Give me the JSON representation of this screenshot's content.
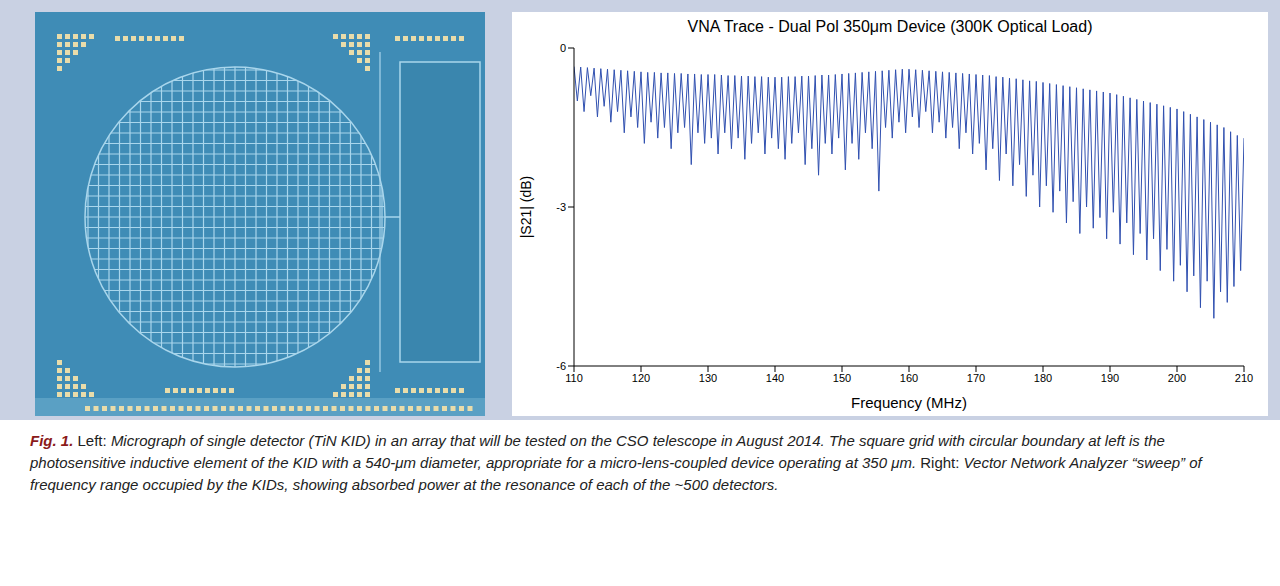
{
  "chart_data": {
    "type": "line",
    "title": "VNA Trace - Dual Pol 350μm Device (300K Optical Load)",
    "x_label": "Frequency (MHz)",
    "y_label": "|S21| (dB)",
    "color": "#3050b0",
    "grid": false,
    "xlim": [
      110,
      210
    ],
    "xticks": [
      110,
      120,
      130,
      140,
      150,
      160,
      170,
      180,
      190,
      200,
      210
    ],
    "ylim": [
      -6,
      0
    ],
    "yticks": [
      -6,
      -3,
      0
    ],
    "x": [
      110,
      110.5,
      111,
      111.5,
      112,
      112.5,
      113,
      113.5,
      114,
      114.5,
      115,
      115.5,
      116,
      116.5,
      117,
      117.5,
      118,
      118.5,
      119,
      119.5,
      120,
      120.5,
      121,
      121.5,
      122,
      122.5,
      123,
      123.5,
      124,
      124.5,
      125,
      125.5,
      126,
      126.5,
      127,
      127.5,
      128,
      128.5,
      129,
      129.5,
      130,
      130.5,
      131,
      131.5,
      132,
      132.5,
      133,
      133.5,
      134,
      134.5,
      135,
      135.5,
      136,
      136.5,
      137,
      137.5,
      138,
      138.5,
      139,
      139.5,
      140,
      140.5,
      141,
      141.5,
      142,
      142.5,
      143,
      143.5,
      144,
      144.5,
      145,
      145.5,
      146,
      146.5,
      147,
      147.5,
      148,
      148.5,
      149,
      149.5,
      150,
      150.5,
      151,
      151.5,
      152,
      152.5,
      153,
      153.5,
      154,
      154.5,
      155,
      155.5,
      156,
      156.5,
      157,
      157.5,
      158,
      158.5,
      159,
      159.5,
      160,
      160.5,
      161,
      161.5,
      162,
      162.5,
      163,
      163.5,
      164,
      164.5,
      165,
      165.5,
      166,
      166.5,
      167,
      167.5,
      168,
      168.5,
      169,
      169.5,
      170,
      170.5,
      171,
      171.5,
      172,
      172.5,
      173,
      173.5,
      174,
      174.5,
      175,
      175.5,
      176,
      176.5,
      177,
      177.5,
      178,
      178.5,
      179,
      179.5,
      180,
      180.5,
      181,
      181.5,
      182,
      182.5,
      183,
      183.5,
      184,
      184.5,
      185,
      185.5,
      186,
      186.5,
      187,
      187.5,
      188,
      188.5,
      189,
      189.5,
      190,
      190.5,
      191,
      191.5,
      192,
      192.5,
      193,
      193.5,
      194,
      194.5,
      195,
      195.5,
      196,
      196.5,
      197,
      197.5,
      198,
      198.5,
      199,
      199.5,
      200,
      200.5,
      201,
      201.5,
      202,
      202.5,
      203,
      203.5,
      204,
      204.5,
      205,
      205.5,
      206,
      206.5,
      207,
      207.5,
      208,
      208.5,
      209,
      209.5,
      210
    ],
    "values": [
      -0.35,
      -1.0,
      -0.36,
      -1.2,
      -0.37,
      -0.9,
      -0.38,
      -1.3,
      -0.39,
      -1.1,
      -0.4,
      -1.4,
      -0.41,
      -1.2,
      -0.42,
      -1.6,
      -0.43,
      -1.3,
      -0.44,
      -1.5,
      -0.45,
      -1.8,
      -0.46,
      -1.4,
      -0.46,
      -1.7,
      -0.47,
      -1.5,
      -0.47,
      -1.9,
      -0.48,
      -1.6,
      -0.48,
      -1.5,
      -0.49,
      -2.2,
      -0.49,
      -1.6,
      -0.5,
      -1.8,
      -0.5,
      -1.7,
      -0.5,
      -2.0,
      -0.51,
      -1.6,
      -0.52,
      -1.9,
      -0.52,
      -1.7,
      -0.53,
      -2.1,
      -0.53,
      -1.8,
      -0.54,
      -1.6,
      -0.54,
      -2.0,
      -0.55,
      -1.7,
      -0.55,
      -1.9,
      -0.55,
      -2.1,
      -0.54,
      -1.8,
      -0.54,
      -1.6,
      -0.53,
      -2.2,
      -0.53,
      -1.9,
      -0.52,
      -2.4,
      -0.51,
      -1.8,
      -0.51,
      -2.0,
      -0.5,
      -1.7,
      -0.49,
      -2.3,
      -0.48,
      -1.8,
      -0.47,
      -2.1,
      -0.46,
      -1.6,
      -0.45,
      -1.9,
      -0.44,
      -2.7,
      -0.43,
      -1.5,
      -0.42,
      -1.7,
      -0.41,
      -1.4,
      -0.4,
      -1.6,
      -0.4,
      -1.3,
      -0.41,
      -1.5,
      -0.42,
      -1.2,
      -0.43,
      -1.6,
      -0.44,
      -1.4,
      -0.45,
      -1.7,
      -0.46,
      -1.5,
      -0.47,
      -1.9,
      -0.48,
      -1.6,
      -0.49,
      -2.0,
      -0.5,
      -1.8,
      -0.51,
      -2.3,
      -0.52,
      -1.9,
      -0.54,
      -2.5,
      -0.55,
      -2.0,
      -0.57,
      -2.6,
      -0.58,
      -2.2,
      -0.6,
      -2.8,
      -0.62,
      -2.4,
      -0.63,
      -3.0,
      -0.65,
      -2.6,
      -0.67,
      -3.1,
      -0.69,
      -2.7,
      -0.71,
      -3.3,
      -0.73,
      -2.9,
      -0.75,
      -3.5,
      -0.77,
      -3.0,
      -0.79,
      -3.4,
      -0.81,
      -3.2,
      -0.83,
      -3.6,
      -0.85,
      -3.1,
      -0.88,
      -3.7,
      -0.91,
      -3.3,
      -0.94,
      -3.9,
      -0.97,
      -3.5,
      -1.0,
      -4.0,
      -1.03,
      -3.6,
      -1.06,
      -4.2,
      -1.09,
      -3.8,
      -1.12,
      -4.4,
      -1.15,
      -4.1,
      -1.2,
      -4.6,
      -1.25,
      -4.3,
      -1.3,
      -4.9,
      -1.35,
      -4.4,
      -1.4,
      -5.1,
      -1.45,
      -4.6,
      -1.5,
      -4.8,
      -1.58,
      -4.5,
      -1.65,
      -4.2,
      -1.7
    ]
  },
  "caption": {
    "label": "Fig. 1.",
    "parts": [
      {
        "head": "Left:",
        "text": "Micrograph of single detector (TiN KID) in an array that will be tested on the CSO telescope in August 2014. The square grid with circular boundary at left is the photosensitive inductive element of the KID with a 540-μm diameter, appropriate for a micro-lens-coupled device operating at 350 μm."
      },
      {
        "head": "Right:",
        "text": "Vector Network Analyzer “sweep” of frequency range occupied by the KIDs, showing absorbed power at the resonance of each of the ~500 detectors."
      }
    ]
  }
}
